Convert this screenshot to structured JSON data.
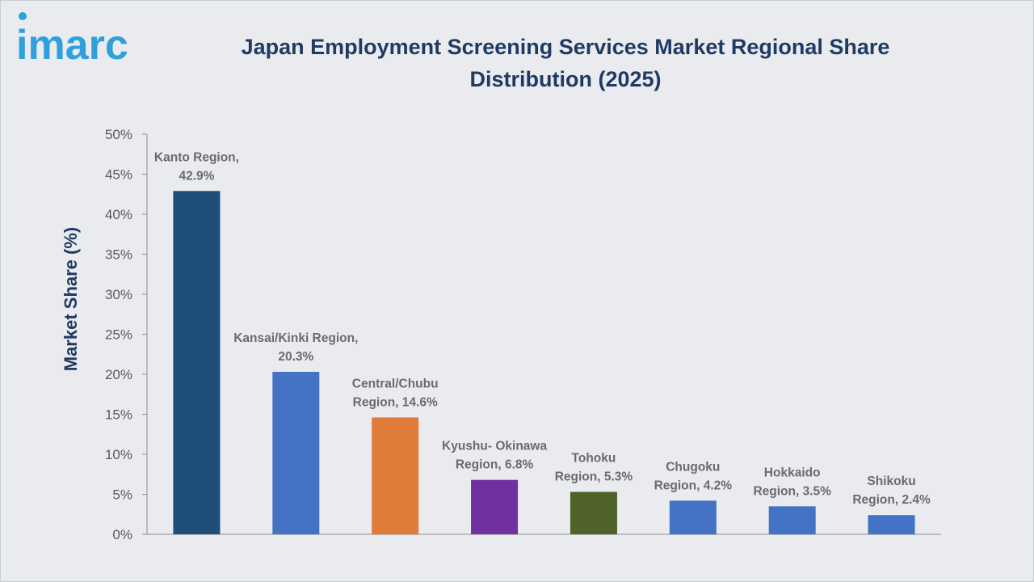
{
  "brand": {
    "logo_text": "imarc",
    "logo_color": "#2fa0dc"
  },
  "title": {
    "line1": "Japan Employment Screening Services Market Regional Share",
    "line2": "Distribution (2025)"
  },
  "chart_data": {
    "type": "bar",
    "title": "Japan Employment Screening Services Market Regional Share Distribution (2025)",
    "ylabel": "Market Share (%)",
    "xlabel": "",
    "ylim": [
      0,
      50
    ],
    "yticks": [
      "0%",
      "5%",
      "10%",
      "15%",
      "20%",
      "25%",
      "30%",
      "35%",
      "40%",
      "45%",
      "50%"
    ],
    "grid": false,
    "categories": [
      "Kanto Region",
      "Kansai/Kinki Region",
      "Central/Chubu Region",
      "Kyushu- Okinawa Region",
      "Tohoku Region",
      "Chugoku Region",
      "Hokkaido Region",
      "Shikoku Region"
    ],
    "values": [
      42.9,
      20.3,
      14.6,
      6.8,
      5.3,
      4.2,
      3.5,
      2.4
    ],
    "colors": [
      "#1f4e79",
      "#4472c4",
      "#e07b39",
      "#7030a0",
      "#4f6228",
      "#4472c4",
      "#4472c4",
      "#4472c4"
    ],
    "labels": [
      [
        "Kanto Region,",
        "42.9%"
      ],
      [
        "Kansai/Kinki Region,",
        "20.3%"
      ],
      [
        "Central/Chubu",
        "Region, 14.6%"
      ],
      [
        "Kyushu- Okinawa",
        "Region, 6.8%"
      ],
      [
        "Tohoku",
        "Region, 5.3%"
      ],
      [
        "Chugoku",
        "Region, 4.2%"
      ],
      [
        "Hokkaido",
        "Region, 3.5%"
      ],
      [
        "Shikoku",
        "Region, 2.4%"
      ]
    ]
  }
}
